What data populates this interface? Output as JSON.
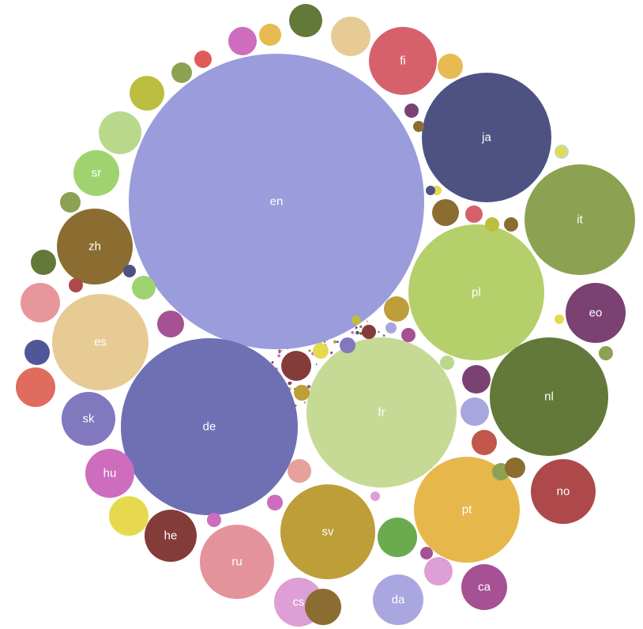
{
  "chart_data": {
    "type": "bubble",
    "title": "",
    "bubbles": [
      {
        "label": "en",
        "color": "#9a9cdc"
      },
      {
        "label": "de",
        "color": "#6f70b3"
      },
      {
        "label": "fr",
        "color": "#c6da95"
      },
      {
        "label": "pl",
        "color": "#b5cf6b"
      },
      {
        "label": "nl",
        "color": "#637939"
      },
      {
        "label": "ja",
        "color": "#4d5283"
      },
      {
        "label": "it",
        "color": "#8ca252"
      },
      {
        "label": "pt",
        "color": "#e6b84b"
      },
      {
        "label": "sv",
        "color": "#bd9e39"
      },
      {
        "label": "es",
        "color": "#e7cb94"
      },
      {
        "label": "ru",
        "color": "#e4939b"
      },
      {
        "label": "zh",
        "color": "#8c6d31"
      },
      {
        "label": "fi",
        "color": "#d6616b"
      },
      {
        "label": "no",
        "color": "#ad494a"
      },
      {
        "label": "eo",
        "color": "#7b4173"
      },
      {
        "label": "he",
        "color": "#843c39"
      },
      {
        "label": "sr",
        "color": "#9fd36f"
      },
      {
        "label": "sk",
        "color": "#8178be"
      },
      {
        "label": "hu",
        "color": "#ce6dbd"
      },
      {
        "label": "cs",
        "color": "#de9ed6"
      },
      {
        "label": "da",
        "color": "#aaa6e0"
      },
      {
        "label": "ca",
        "color": "#a55194"
      },
      {
        "label": "",
        "color": "#e7ba52"
      },
      {
        "label": "",
        "color": "#637939"
      },
      {
        "label": "",
        "color": "#e7cb94"
      },
      {
        "label": "",
        "color": "#e7ba52"
      },
      {
        "label": "",
        "color": "#ce6dbd"
      },
      {
        "label": "",
        "color": "#b8d98c"
      },
      {
        "label": "",
        "color": "#bdbd3f"
      },
      {
        "label": "",
        "color": "#8ca252"
      },
      {
        "label": "",
        "color": "#8ca252"
      },
      {
        "label": "",
        "color": "#637939"
      },
      {
        "label": "",
        "color": "#e7969c"
      },
      {
        "label": "",
        "color": "#4f5798"
      },
      {
        "label": "",
        "color": "#e06c5d"
      },
      {
        "label": "",
        "color": "#e6d94e"
      },
      {
        "label": "",
        "color": "#ce6dbd"
      },
      {
        "label": "",
        "color": "#ad494a"
      },
      {
        "label": "",
        "color": "#4d5283"
      },
      {
        "label": "",
        "color": "#a55194"
      },
      {
        "label": "",
        "color": "#6bab4f"
      },
      {
        "label": "",
        "color": "#8c6d31"
      },
      {
        "label": "",
        "color": "#a8a6de"
      },
      {
        "label": "",
        "color": "#c0574a"
      },
      {
        "label": "",
        "color": "#bd9e39"
      },
      {
        "label": "",
        "color": "#7b4173"
      },
      {
        "label": "",
        "color": "#843c39"
      },
      {
        "label": "",
        "color": "#8ca252"
      },
      {
        "label": "",
        "color": "#e8a09a"
      },
      {
        "label": "",
        "color": "#de9ed6"
      },
      {
        "label": "",
        "color": "#8c6d31"
      },
      {
        "label": "",
        "color": "#d6616b"
      },
      {
        "label": "",
        "color": "#bdbd3f"
      },
      {
        "label": "",
        "color": "#8c6d31"
      },
      {
        "label": "",
        "color": "#8c6d31"
      },
      {
        "label": "",
        "color": "#c6dbaf"
      },
      {
        "label": "",
        "color": "#e05a5a"
      },
      {
        "label": "",
        "color": "#e6d94e"
      },
      {
        "label": "",
        "color": "#8178be"
      },
      {
        "label": "",
        "color": "#9fd36f"
      },
      {
        "label": "",
        "color": "#e6d94e"
      },
      {
        "label": "",
        "color": "#a55194"
      },
      {
        "label": "",
        "color": "#b8d98c"
      },
      {
        "label": "",
        "color": "#843c39"
      },
      {
        "label": "",
        "color": "#bd9e39"
      },
      {
        "label": "",
        "color": "#ce6dbd"
      },
      {
        "label": "",
        "color": "#e6d94e"
      },
      {
        "label": "",
        "color": "#a8a6de"
      },
      {
        "label": "",
        "color": "#7b4173"
      },
      {
        "label": "",
        "color": "#8c6d31"
      },
      {
        "label": "",
        "color": "#a55194"
      },
      {
        "label": "",
        "color": "#bdbd3f"
      },
      {
        "label": "",
        "color": "#8ca252"
      },
      {
        "label": "",
        "color": "#de9ed6"
      },
      {
        "label": "",
        "color": "#4d5283"
      },
      {
        "label": "",
        "color": "#e6d94e"
      }
    ]
  }
}
